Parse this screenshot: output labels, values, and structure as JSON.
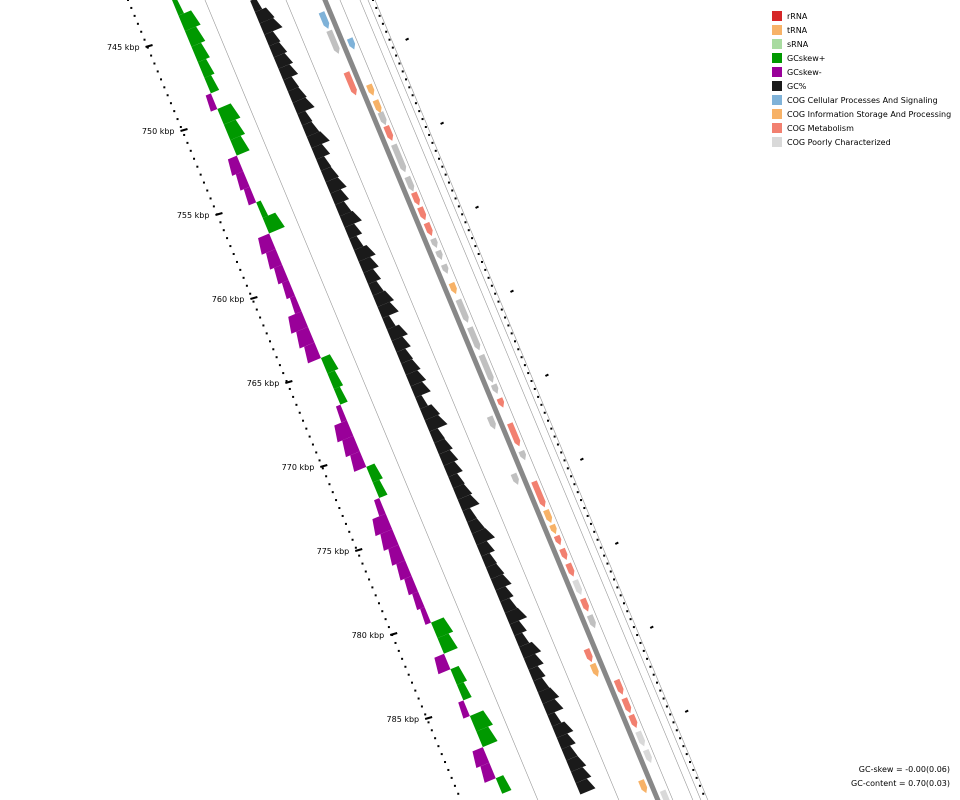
{
  "legend": [
    {
      "label": "rRNA",
      "color": "#d62728"
    },
    {
      "label": "tRNA",
      "color": "#f7b267"
    },
    {
      "label": "sRNA",
      "color": "#a8dba0"
    },
    {
      "label": "GCskew+",
      "color": "#009900"
    },
    {
      "label": "GCskew-",
      "color": "#990099"
    },
    {
      "label": "GC%",
      "color": "#1a1a1a"
    },
    {
      "label": "COG Cellular Processes And Signaling",
      "color": "#7fb2d8"
    },
    {
      "label": "COG Information Storage And Processing",
      "color": "#f7b267"
    },
    {
      "label": "COG Metabolism",
      "color": "#f28070"
    },
    {
      "label": "COG Poorly Characterized",
      "color": "#d9d9d9"
    }
  ],
  "stats": {
    "gc_skew": "GC-skew = -0.00(0.06)",
    "gc_content": "GC-content = 0.70(0.03)"
  },
  "ticks": [
    "745 kbp",
    "750 kbp",
    "755 kbp",
    "760 kbp",
    "765 kbp",
    "770 kbp",
    "775 kbp",
    "780 kbp",
    "785 kbp"
  ],
  "colors": {
    "gc_skew_pos": "#009900",
    "gc_skew_neg": "#990099",
    "gc_content": "#1a1a1a",
    "backbone": "#888888",
    "hypothetical": "#c0c0c0",
    "ring_line": "#999999"
  }
}
